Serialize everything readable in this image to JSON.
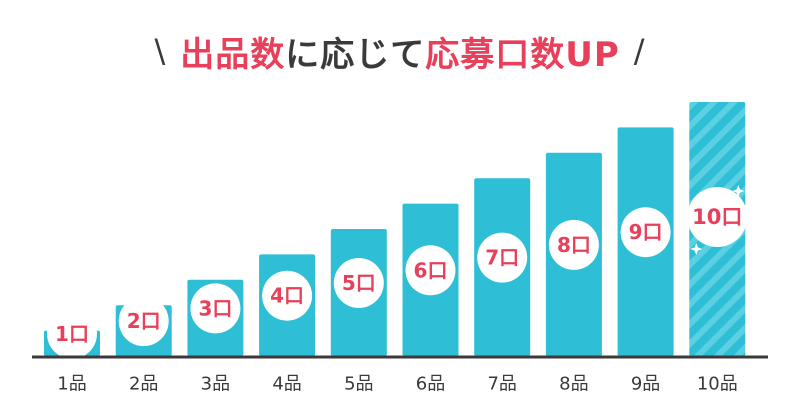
{
  "title": {
    "open": "\\",
    "part1": "出品数",
    "part2": "に応じて",
    "part3": "応募口数UP",
    "close": "/"
  },
  "colors": {
    "bar": "#2ebfd6",
    "bar_stripe": "#5bd0e2",
    "accent": "#e8405a",
    "text": "#3a3a3a",
    "badge": "#ffffff",
    "baseline": "#3a3a3a"
  },
  "chart_data": {
    "type": "bar",
    "categories": [
      "1品",
      "2品",
      "3品",
      "4品",
      "5品",
      "6品",
      "7品",
      "8品",
      "9品",
      "10品"
    ],
    "values": [
      1,
      2,
      3,
      4,
      5,
      6,
      7,
      8,
      9,
      10
    ],
    "data_labels": [
      "1口",
      "2口",
      "3口",
      "4口",
      "5口",
      "6口",
      "7口",
      "8口",
      "9口",
      "10口"
    ],
    "highlight_index": 9,
    "ylim": [
      0,
      10
    ],
    "grid": false,
    "legend": "none"
  }
}
